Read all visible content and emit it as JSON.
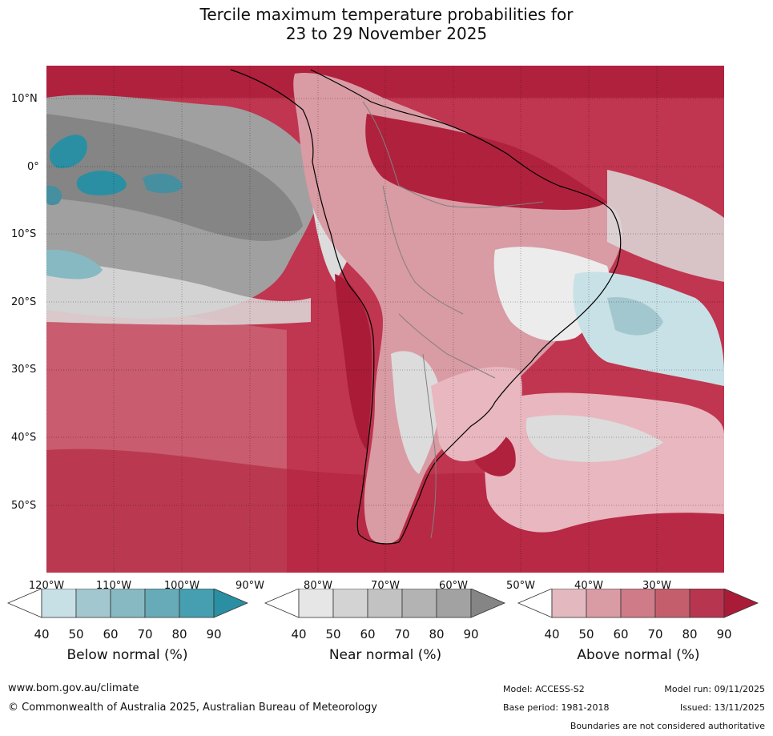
{
  "title": {
    "line1": "Tercile maximum temperature probabilities for",
    "line2": "23 to 29 November 2025"
  },
  "map": {
    "latitude_labels": [
      "10°N",
      "0°",
      "10°S",
      "20°S",
      "30°S",
      "40°S",
      "50°S"
    ],
    "longitude_labels": [
      "120°W",
      "110°W",
      "100°W",
      "90°W",
      "80°W",
      "70°W",
      "60°W",
      "50°W",
      "40°W",
      "30°W"
    ],
    "colors": {
      "ocean_warm": "#c0354f",
      "ocean_warm_dark": "#b0213d",
      "near_normal": "#a0a0a0",
      "near_dark": "#858585",
      "below": "#6aaebb",
      "below_dark": "#2a8fa3",
      "light_grey": "#dcdcdc",
      "pink": "#d98a97",
      "light_pink": "#e8b7bf",
      "light_blue": "#c8e1e6",
      "coast": "#000000",
      "border": "#808080"
    }
  },
  "legends": [
    {
      "title": "Below normal (%)",
      "ticks": [
        "40",
        "50",
        "60",
        "70",
        "80",
        "90"
      ],
      "colors": [
        "#ffffff",
        "#c7e0e5",
        "#a3c7ce",
        "#87b9c2",
        "#68abb8",
        "#469fb0",
        "#2a8fa3"
      ]
    },
    {
      "title": "Near normal (%)",
      "ticks": [
        "40",
        "50",
        "60",
        "70",
        "80",
        "90"
      ],
      "colors": [
        "#ffffff",
        "#e6e6e6",
        "#d3d3d3",
        "#c2c2c2",
        "#b3b3b3",
        "#a2a2a2",
        "#858585"
      ]
    },
    {
      "title": "Above normal (%)",
      "ticks": [
        "40",
        "50",
        "60",
        "70",
        "80",
        "90"
      ],
      "colors": [
        "#ffffff",
        "#e3b8be",
        "#d99ba4",
        "#cf7c88",
        "#c45e6d",
        "#b8354f",
        "#aa1b38"
      ]
    }
  ],
  "footer": {
    "website": "www.bom.gov.au/climate",
    "copyright": "© Commonwealth of Australia 2025, Australian Bureau of Meteorology",
    "model": "Model: ACCESS-S2",
    "model_run": "Model run: 09/11/2025",
    "base_period": "Base period: 1981-2018",
    "issued": "Issued: 13/11/2025",
    "disclaimer": "Boundaries are not considered authoritative"
  }
}
